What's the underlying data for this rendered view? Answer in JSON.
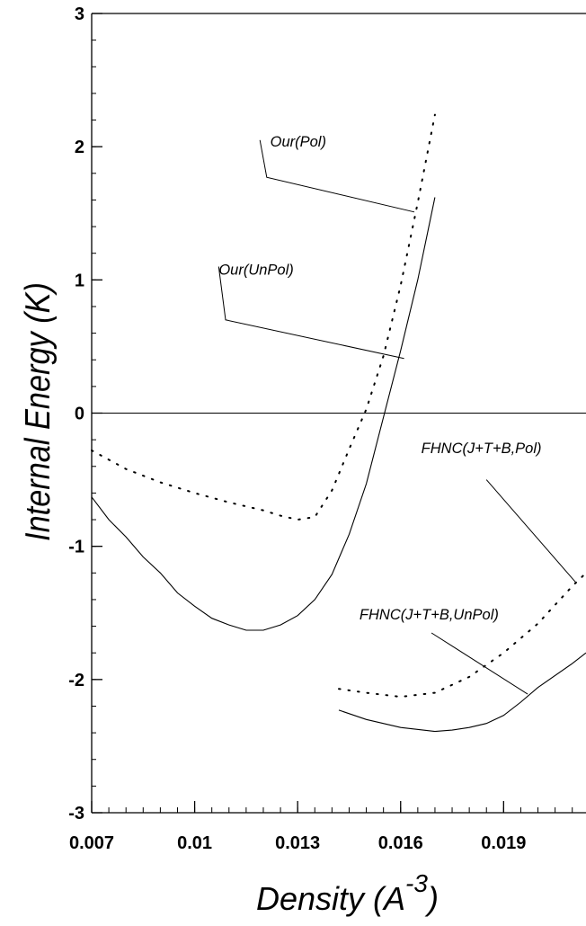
{
  "chart_data": {
    "type": "line",
    "xlabel": "Density (A",
    "xlabel_sup": "-3",
    "xlabel_close": ")",
    "ylabel": "Internal Energy (K)",
    "xlim": [
      0.007,
      0.0214
    ],
    "ylim": [
      -3,
      3
    ],
    "x_ticks": [
      0.007,
      0.01,
      0.013,
      0.016,
      0.019
    ],
    "x_tick_labels": [
      "0.007",
      "0.01",
      "0.013",
      "0.016",
      "0.019"
    ],
    "y_ticks": [
      -3,
      -2,
      -1,
      0,
      1,
      2,
      3
    ],
    "y_tick_labels": [
      "-3",
      "-2",
      "-1",
      "0",
      "1",
      "2",
      "3"
    ],
    "zero_line": true,
    "grid": false,
    "series": [
      {
        "name": "Our(Pol)",
        "style": "dotted",
        "x": [
          0.007,
          0.008,
          0.009,
          0.01,
          0.011,
          0.012,
          0.0125,
          0.013,
          0.0135,
          0.014,
          0.0145,
          0.015,
          0.0155,
          0.016,
          0.0165,
          0.017
        ],
        "y": [
          -0.28,
          -0.42,
          -0.52,
          -0.6,
          -0.67,
          -0.73,
          -0.77,
          -0.8,
          -0.78,
          -0.58,
          -0.27,
          0.03,
          0.43,
          0.96,
          1.58,
          2.24
        ]
      },
      {
        "name": "Our(UnPol)",
        "style": "solid",
        "x": [
          0.007,
          0.0075,
          0.008,
          0.0085,
          0.009,
          0.0095,
          0.01,
          0.0105,
          0.011,
          0.0115,
          0.012,
          0.0125,
          0.013,
          0.0135,
          0.014,
          0.0145,
          0.015,
          0.0155,
          0.016,
          0.0165,
          0.017
        ],
        "y": [
          -0.63,
          -0.8,
          -0.93,
          -1.08,
          -1.2,
          -1.35,
          -1.45,
          -1.54,
          -1.59,
          -1.63,
          -1.63,
          -1.59,
          -1.52,
          -1.4,
          -1.21,
          -0.91,
          -0.53,
          -0.03,
          0.47,
          1.0,
          1.62
        ]
      },
      {
        "name": "FHNC(J+T+B,Pol)",
        "style": "dotted",
        "x": [
          0.0142,
          0.015,
          0.016,
          0.017,
          0.018,
          0.019,
          0.02,
          0.021,
          0.0214
        ],
        "y": [
          -2.07,
          -2.1,
          -2.13,
          -2.1,
          -1.98,
          -1.8,
          -1.58,
          -1.3,
          -1.2
        ]
      },
      {
        "name": "FHNC(J+T+B,UnPol)",
        "style": "solid",
        "x": [
          0.0142,
          0.015,
          0.016,
          0.017,
          0.0175,
          0.018,
          0.0185,
          0.019,
          0.0195,
          0.02,
          0.021,
          0.0214
        ],
        "y": [
          -2.23,
          -2.3,
          -2.36,
          -2.39,
          -2.38,
          -2.36,
          -2.33,
          -2.27,
          -2.17,
          -2.06,
          -1.88,
          -1.8
        ]
      }
    ],
    "annotations": [
      {
        "text": "Our(Pol)",
        "series": "Our(Pol)",
        "label_at": [
          0.0122,
          2.0
        ],
        "leader": [
          [
            0.0119,
            2.05
          ],
          [
            0.0121,
            1.77
          ],
          [
            0.0164,
            1.51
          ]
        ]
      },
      {
        "text": "Our(UnPol)",
        "series": "Our(UnPol)",
        "label_at": [
          0.0107,
          1.04
        ],
        "leader": [
          [
            0.0107,
            1.1
          ],
          [
            0.0109,
            0.7
          ],
          [
            0.0161,
            0.41
          ]
        ]
      },
      {
        "text": "FHNC(J+T+B,Pol)",
        "series": "FHNC(J+T+B,Pol)",
        "label_at": [
          0.0166,
          -0.3
        ],
        "leader": [
          [
            0.0185,
            -0.5
          ],
          [
            0.0211,
            -1.27
          ]
        ]
      },
      {
        "text": "FHNC(J+T+B,UnPol)",
        "series": "FHNC(J+T+B,UnPol)",
        "label_at": [
          0.0148,
          -1.55
        ],
        "leader": [
          [
            0.0169,
            -1.65
          ],
          [
            0.0197,
            -2.11
          ]
        ]
      }
    ]
  }
}
